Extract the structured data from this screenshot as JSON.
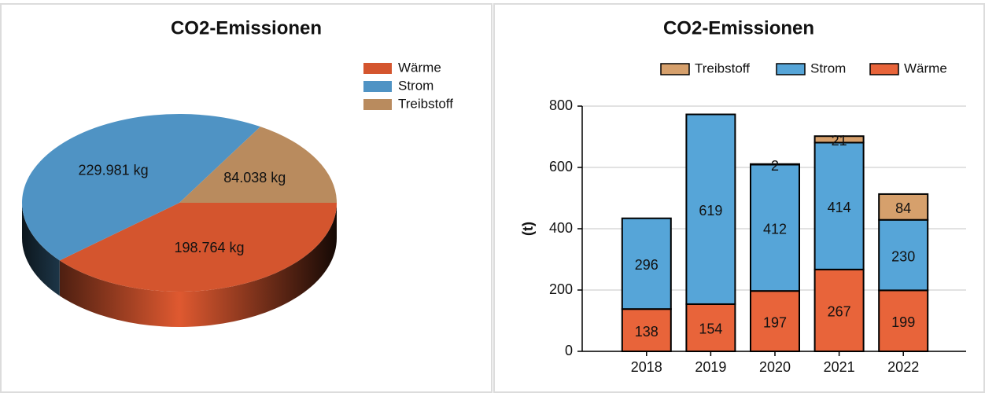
{
  "chart_data": [
    {
      "type": "pie",
      "title": "CO2-Emissionen",
      "categories": [
        "Wärme",
        "Strom",
        "Treibstoff"
      ],
      "values": [
        198764,
        229981,
        84038
      ],
      "value_labels": [
        "198.764 kg",
        "229.981 kg",
        "84.038 kg"
      ],
      "colors": [
        "#d4552e",
        "#4f93c4",
        "#b98b5e"
      ]
    },
    {
      "type": "stacked_bar",
      "title": "CO2-Emissionen",
      "ylabel": "(t)",
      "categories": [
        "2018",
        "2019",
        "2020",
        "2021",
        "2022"
      ],
      "series": [
        {
          "name": "Treibstoff",
          "color": "#d6a06c",
          "values": [
            null,
            null,
            2,
            21,
            84
          ]
        },
        {
          "name": "Strom",
          "color": "#56a5d8",
          "values": [
            296,
            619,
            412,
            414,
            230
          ]
        },
        {
          "name": "Wärme",
          "color": "#e8643a",
          "values": [
            138,
            154,
            197,
            267,
            199
          ]
        }
      ],
      "ylim": [
        0,
        800
      ],
      "yticks": [
        0,
        200,
        400,
        600,
        800
      ],
      "grid": true
    }
  ]
}
